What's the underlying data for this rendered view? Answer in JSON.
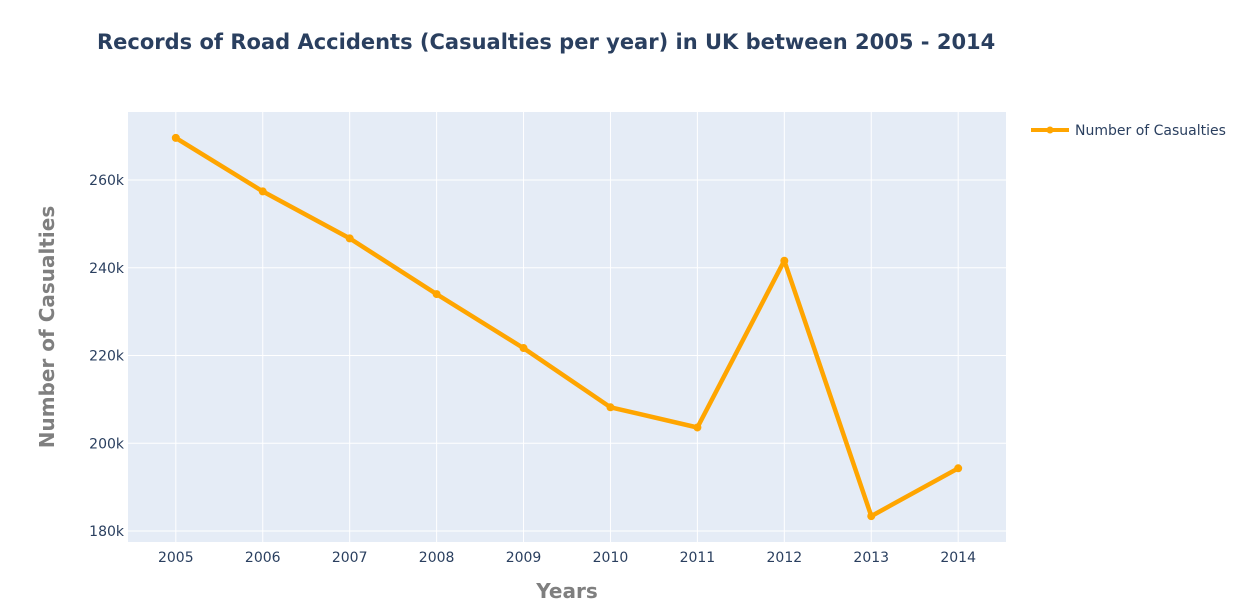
{
  "chart_data": {
    "type": "line",
    "title": "Records of Road Accidents (Casualties per year) in UK between 2005 - 2014",
    "xlabel": "Years",
    "ylabel": "Number of Casualties",
    "x": [
      2005,
      2006,
      2007,
      2008,
      2009,
      2010,
      2011,
      2012,
      2013,
      2014
    ],
    "x_tick_labels": [
      "2005",
      "2006",
      "2007",
      "2008",
      "2009",
      "2010",
      "2011",
      "2012",
      "2013",
      "2014"
    ],
    "y_tick_values": [
      180000,
      200000,
      220000,
      240000,
      260000
    ],
    "y_tick_labels": [
      "180k",
      "200k",
      "220k",
      "240k",
      "260k"
    ],
    "ylim": [
      177500,
      275500
    ],
    "xlim": [
      2004.45,
      2014.55
    ],
    "grid": true,
    "legend_position": "top-right",
    "plot_background": "#e5ecf6",
    "series": [
      {
        "name": "Number of Casualties",
        "color": "#ffa500",
        "values": [
          269600,
          257400,
          246700,
          234000,
          221700,
          208200,
          203600,
          241600,
          183400,
          194300
        ]
      }
    ]
  }
}
